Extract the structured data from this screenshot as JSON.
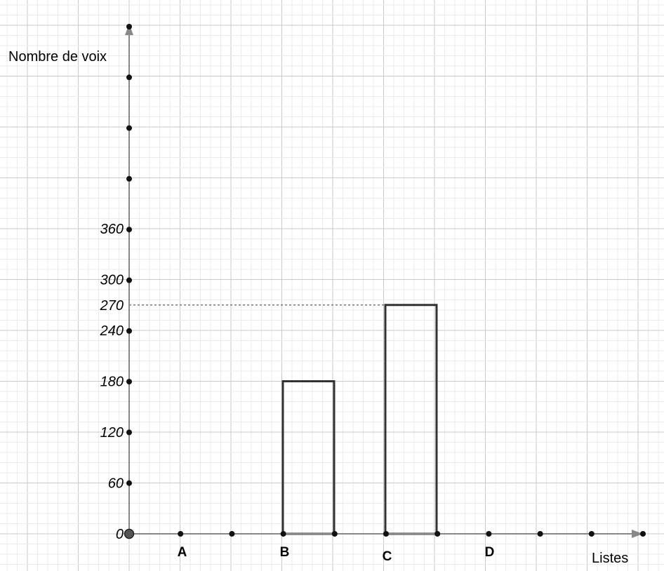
{
  "chart_data": {
    "type": "bar",
    "ylabel": "Nombre de voix",
    "xlabel": "Listes",
    "categories": [
      "A",
      "B",
      "C",
      "D"
    ],
    "values": [
      null,
      180,
      270,
      null
    ],
    "y_ticks": [
      "0",
      "60",
      "120",
      "180",
      "240",
      "270",
      "300",
      "360"
    ],
    "ylim": [
      0,
      600
    ],
    "grid": true,
    "reference_line": {
      "value": 270
    }
  }
}
